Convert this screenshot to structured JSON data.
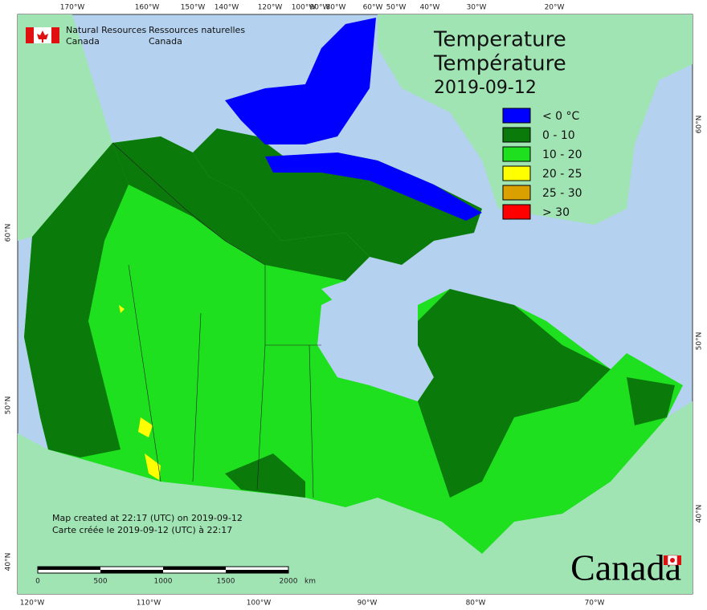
{
  "header": {
    "agency_en": [
      "Natural Resources",
      "Canada"
    ],
    "agency_fr": [
      "Ressources naturelles",
      "Canada"
    ]
  },
  "title": [
    "Temperature",
    "Température",
    "2019-09-12"
  ],
  "legend": {
    "items": [
      {
        "label": "< 0 °C",
        "color": "#0000ff"
      },
      {
        "label": "0 - 10",
        "color": "#0a7a0a"
      },
      {
        "label": "10 - 20",
        "color": "#1ee01e"
      },
      {
        "label": "20 - 25",
        "color": "#ffff00"
      },
      {
        "label": "25 - 30",
        "color": "#d9a000"
      },
      {
        "label": "> 30",
        "color": "#ff0000"
      }
    ]
  },
  "graticule": {
    "top": [
      "170°W",
      "160°W",
      "150°W",
      "140°W",
      "120°W",
      "100°W",
      "90°W",
      "80°W",
      "60°W",
      "50°W",
      "40°W",
      "30°W",
      "20°W"
    ],
    "bottom": [
      "120°W",
      "110°W",
      "100°W",
      "90°W",
      "80°W",
      "70°W"
    ],
    "left": [
      "60°N",
      "50°N",
      "40°N"
    ],
    "right": [
      "60°N",
      "50°N",
      "40°N"
    ]
  },
  "credits": [
    "Map created at 22:17 (UTC) on 2019-09-12",
    "Carte créée le 2019-09-12 (UTC) à 22:17"
  ],
  "scale": {
    "ticks": [
      0,
      500,
      1000,
      1500,
      2000
    ],
    "unit": "km"
  },
  "wordmark": "Canada"
}
